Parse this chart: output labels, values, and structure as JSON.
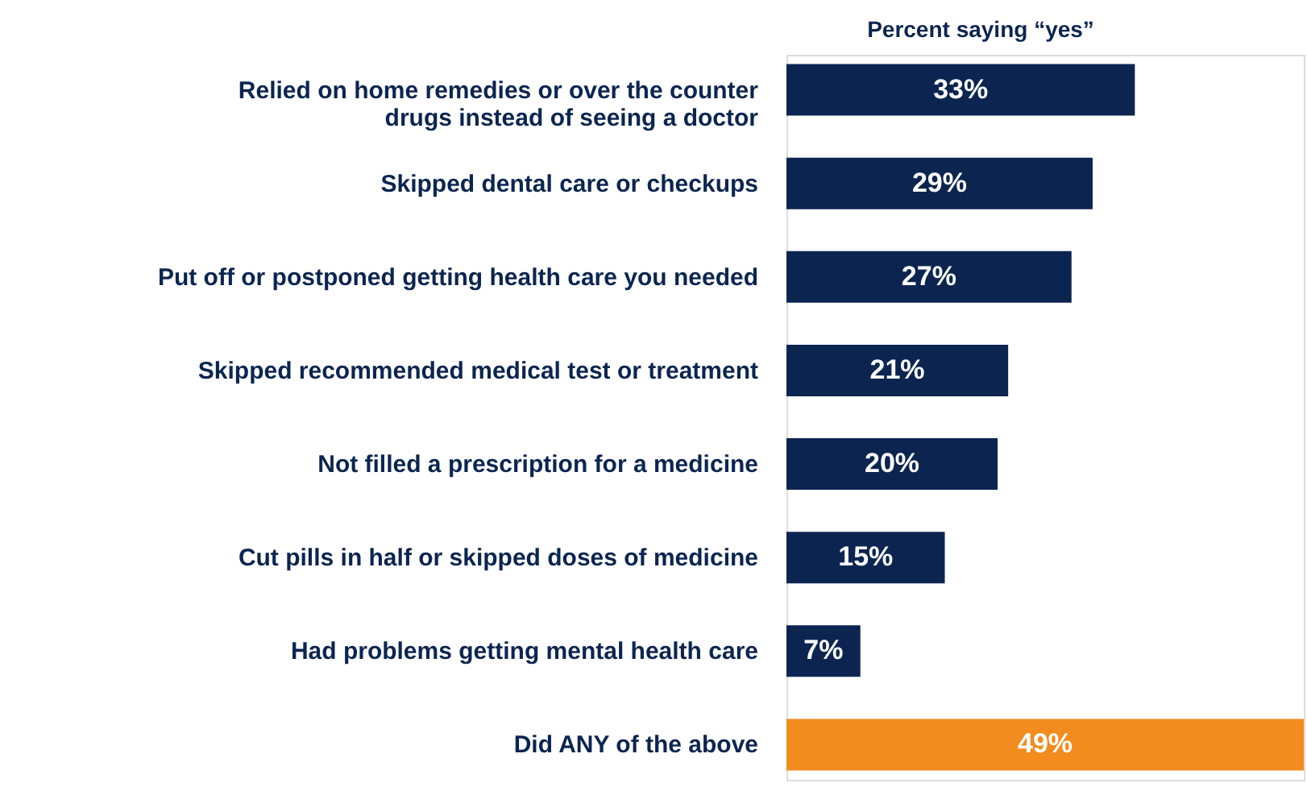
{
  "chart_data": {
    "type": "bar",
    "orientation": "horizontal",
    "title": "Percent saying “yes”",
    "categories": [
      "Relied on home remedies or over the counter\ndrugs instead of seeing a doctor",
      "Skipped dental care or checkups",
      "Put off or postponed getting health care you needed",
      "Skipped recommended medical test or treatment",
      "Not filled a prescription for a medicine",
      "Cut pills in half or skipped doses of medicine",
      "Had problems getting mental health care",
      "Did ANY of the above"
    ],
    "values": [
      33,
      29,
      27,
      21,
      20,
      15,
      7,
      49
    ],
    "value_labels": [
      "33%",
      "29%",
      "27%",
      "21%",
      "20%",
      "15%",
      "7%",
      "49%"
    ],
    "colors": [
      "#0c2550",
      "#0c2550",
      "#0c2550",
      "#0c2550",
      "#0c2550",
      "#0c2550",
      "#0c2550",
      "#f28c1e"
    ],
    "grid": false
  }
}
